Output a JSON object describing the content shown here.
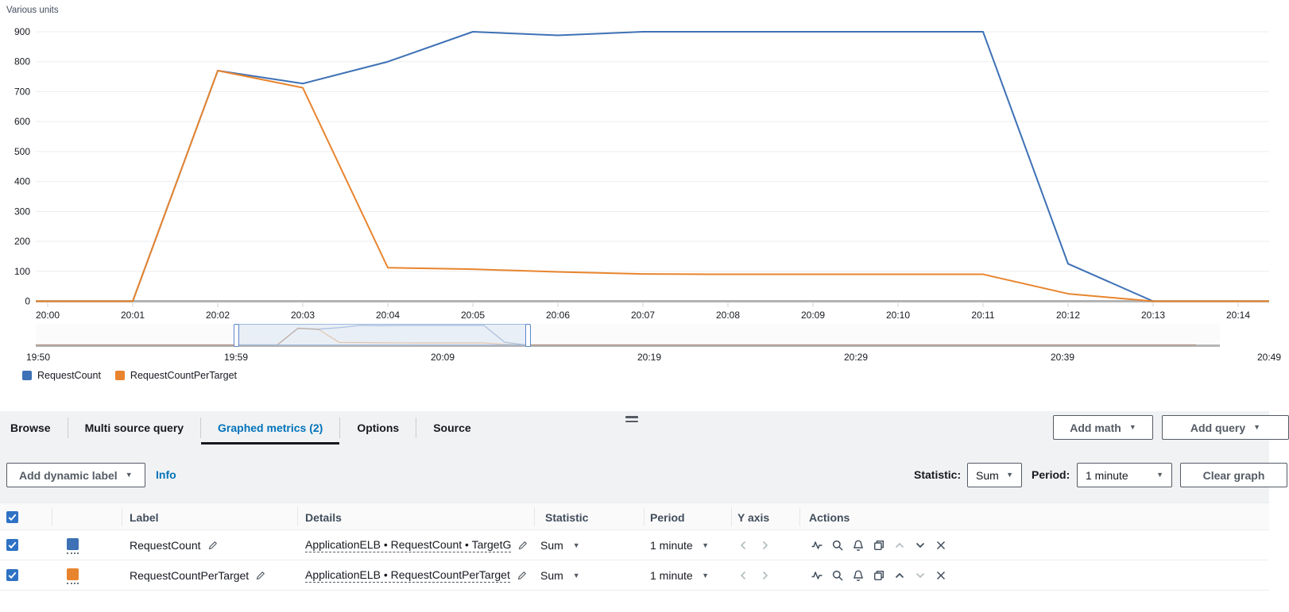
{
  "colors": {
    "accent_blue": "#0073bb",
    "checkbox_blue": "#2e72c4",
    "axis_gray": "#b3b3b3",
    "gridline_gray": "#ededee"
  },
  "icons": {
    "caret_down": "▼"
  },
  "chart_data": {
    "type": "line",
    "title": "Various units",
    "x": [
      "20:00",
      "20:01",
      "20:02",
      "20:03",
      "20:04",
      "20:05",
      "20:06",
      "20:07",
      "20:08",
      "20:09",
      "20:10",
      "20:11",
      "20:12",
      "20:13",
      "20:14"
    ],
    "series": [
      {
        "name": "RequestCount",
        "color": "#3e71b5",
        "values": [
          0,
          0,
          770,
          727,
          800,
          900,
          888,
          900,
          900,
          900,
          900,
          900,
          125,
          0,
          0
        ]
      },
      {
        "name": "RequestCountPerTarget",
        "color": "#e8842d",
        "values": [
          0,
          0,
          770,
          713,
          112,
          107,
          98,
          91,
          90,
          90,
          90,
          90,
          25,
          0,
          0
        ]
      }
    ],
    "ylim": [
      0,
      900
    ],
    "y_ticks": [
      0,
      100,
      200,
      300,
      400,
      500,
      600,
      700,
      800,
      900
    ],
    "grid": true,
    "legend_position": "bottom-left"
  },
  "timeline": {
    "labels": [
      "19:50",
      "19:59",
      "20:09",
      "20:19",
      "20:29",
      "20:39",
      "20:49"
    ],
    "selection": {
      "start": "19:59",
      "end": "20:13"
    }
  },
  "legend": {
    "items": [
      {
        "label": "RequestCount",
        "color": "#3e71b5"
      },
      {
        "label": "RequestCountPerTarget",
        "color": "#e8842d"
      }
    ]
  },
  "tabs": {
    "items": [
      {
        "label": "Browse",
        "active": false
      },
      {
        "label": "Multi source query",
        "active": false
      },
      {
        "label": "Graphed metrics (2)",
        "active": true
      },
      {
        "label": "Options",
        "active": false
      },
      {
        "label": "Source",
        "active": false
      }
    ],
    "add_math": "Add math",
    "add_query": "Add query"
  },
  "toolbar": {
    "add_dynamic_label": "Add dynamic label",
    "info": "Info",
    "statistic_label": "Statistic:",
    "statistic_value": "Sum",
    "period_label": "Period:",
    "period_value": "1 minute",
    "clear_graph": "Clear graph"
  },
  "table": {
    "headers": {
      "label": "Label",
      "details": "Details",
      "statistic": "Statistic",
      "period": "Period",
      "y_axis": "Y axis",
      "actions": "Actions"
    },
    "rows": [
      {
        "checked": true,
        "color": "#3e71b5",
        "label": "RequestCount",
        "details": "ApplicationELB • RequestCount • TargetG",
        "statistic": "Sum",
        "period": "1 minute"
      },
      {
        "checked": true,
        "color": "#e8842d",
        "label": "RequestCountPerTarget",
        "details": "ApplicationELB • RequestCountPerTarget",
        "statistic": "Sum",
        "period": "1 minute"
      }
    ]
  }
}
